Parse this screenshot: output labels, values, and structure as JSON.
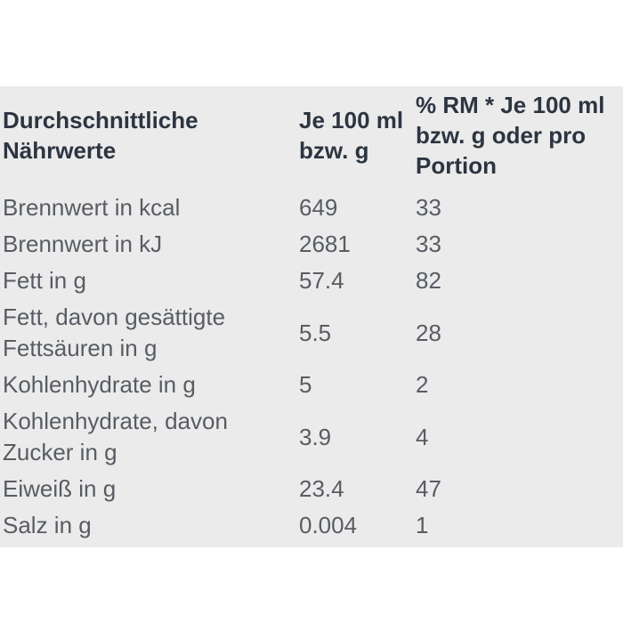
{
  "colors": {
    "page_background": "#ffffff",
    "table_background": "#ebebeb",
    "header_text": "#2c3540",
    "body_text": "#585c63"
  },
  "table": {
    "header": {
      "label_column": "Durchschnittliche Nährwerte",
      "per100_column": "Je 100 ml bzw. g",
      "rm_column": "% RM * Je 100 ml bzw. g oder pro Portion"
    },
    "rows": [
      {
        "label": "Brennwert in kcal",
        "per100": "649",
        "rm": "33"
      },
      {
        "label": "Brennwert in kJ",
        "per100": "2681",
        "rm": "33"
      },
      {
        "label": "Fett in g",
        "per100": "57.4",
        "rm": "82"
      },
      {
        "label": "Fett, davon gesättigte Fettsäuren in g",
        "per100": "5.5",
        "rm": "28"
      },
      {
        "label": "Kohlenhydrate in g",
        "per100": "5",
        "rm": "2"
      },
      {
        "label": "Kohlenhydrate, davon Zucker in g",
        "per100": "3.9",
        "rm": "4"
      },
      {
        "label": "Eiweiß in g",
        "per100": "23.4",
        "rm": "47"
      },
      {
        "label": "Salz in g",
        "per100": "0.004",
        "rm": "1"
      }
    ]
  }
}
